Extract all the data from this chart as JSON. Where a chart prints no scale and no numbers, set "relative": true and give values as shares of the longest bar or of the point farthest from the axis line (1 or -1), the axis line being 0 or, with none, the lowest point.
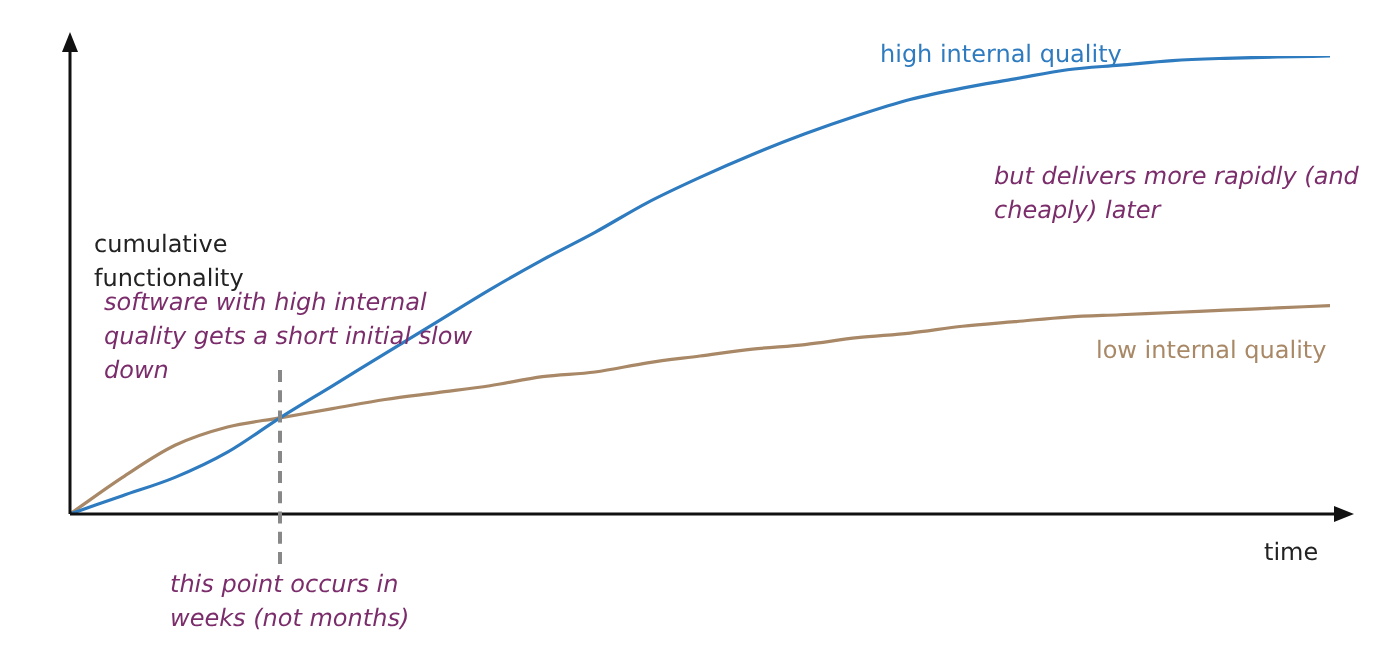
{
  "chart_data": {
    "type": "line",
    "relative": true,
    "xlabel": "time",
    "ylabel": "cumulative functionality",
    "marker": "none",
    "categories": [
      null,
      null,
      null,
      null,
      null,
      null,
      null,
      null,
      null,
      null,
      null,
      null,
      null,
      null,
      null,
      null,
      null,
      null,
      null,
      null,
      null,
      null,
      null,
      null,
      null
    ],
    "series": [
      {
        "name": "high internal quality",
        "color": "#2e7bbf",
        "values": [
          0,
          0.04,
          0.08,
          0.135,
          0.21,
          0.28,
          0.35,
          0.42,
          0.49,
          0.555,
          0.615,
          0.68,
          0.735,
          0.785,
          0.83,
          0.87,
          0.905,
          0.93,
          0.95,
          0.97,
          0.98,
          0.99,
          0.995,
          0.998,
          1
        ]
      },
      {
        "name": "low internal quality",
        "color": "#a88866",
        "values": [
          0,
          0.08,
          0.15,
          0.19,
          0.21,
          0.23,
          0.25,
          0.265,
          0.28,
          0.3,
          0.31,
          0.33,
          0.345,
          0.36,
          0.37,
          0.385,
          0.395,
          0.41,
          0.42,
          0.43,
          0.435,
          0.44,
          0.445,
          0.45,
          0.455
        ]
      }
    ],
    "annotations": [
      "software with high internal quality gets a short initial slow down",
      "but delivers more rapidly (and cheaply) later",
      "this point occurs in weeks (not months)"
    ]
  }
}
